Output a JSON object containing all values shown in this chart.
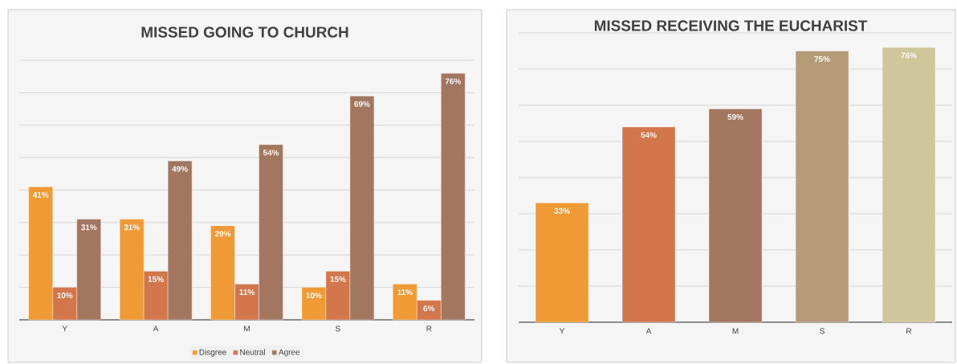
{
  "chart_data": [
    {
      "type": "bar",
      "title": "MISSED GOING TO CHURCH",
      "categories": [
        "Y",
        "A",
        "M",
        "S",
        "R"
      ],
      "series": [
        {
          "name": "Disgree",
          "color": "#ef9a35",
          "values": [
            41,
            31,
            29,
            10,
            11
          ],
          "value_labels": [
            "41%",
            "31%",
            "29%",
            "10%",
            "11%"
          ]
        },
        {
          "name": "Neutral",
          "color": "#d2774c",
          "values": [
            10,
            15,
            11,
            15,
            6
          ],
          "value_labels": [
            "10%",
            "15%",
            "11%",
            "15%",
            "6%"
          ]
        },
        {
          "name": "Agree",
          "color": "#a3765f",
          "values": [
            31,
            49,
            54,
            69,
            76
          ],
          "value_labels": [
            "31%",
            "49%",
            "54%",
            "69%",
            "76%"
          ]
        }
      ],
      "ylim": [
        0,
        80
      ],
      "yticks": [
        {
          "value": 0,
          "label": null
        },
        {
          "value": 10,
          "label": null
        },
        {
          "value": 20,
          "label": null
        },
        {
          "value": 30,
          "label": null
        },
        {
          "value": 40,
          "label": null
        },
        {
          "value": 50,
          "label": null
        },
        {
          "value": 60,
          "label": null
        },
        {
          "value": 70,
          "label": null
        },
        {
          "value": 80,
          "label": null
        }
      ],
      "grid": "y",
      "legend": "bottom",
      "tick_labels": "x"
    },
    {
      "type": "bar",
      "title": "MISSED RECEIVING THE EUCHARIST",
      "categories": [
        "Y",
        "A",
        "M",
        "S",
        "R"
      ],
      "values": [
        33,
        54,
        59,
        75,
        76
      ],
      "value_labels": [
        "33%",
        "54%",
        "59%",
        "75%",
        "76%"
      ],
      "colors": [
        "#ef9a35",
        "#d2774c",
        "#a3765f",
        "#b59b77",
        "#cfc799"
      ],
      "ylim": [
        0,
        80
      ],
      "yticks": [
        {
          "value": 0,
          "label": null
        },
        {
          "value": 10,
          "label": null
        },
        {
          "value": 20,
          "label": null
        },
        {
          "value": 30,
          "label": null
        },
        {
          "value": 40,
          "label": null
        },
        {
          "value": 50,
          "label": null
        },
        {
          "value": 60,
          "label": null
        },
        {
          "value": 70,
          "label": null
        },
        {
          "value": 80,
          "label": null
        }
      ],
      "grid": "y",
      "legend": false,
      "tick_labels": "x"
    }
  ]
}
